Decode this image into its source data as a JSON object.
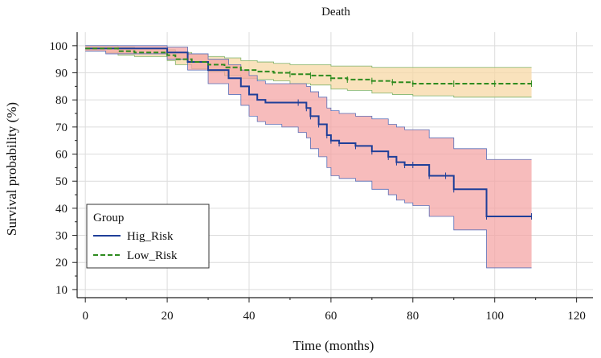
{
  "chart_data": {
    "type": "line",
    "subtype": "kaplan-meier survival curve with confidence bands",
    "title": "Death",
    "xlabel": "Time (months)",
    "ylabel": "Survival probability (%)",
    "xlim": [
      -2,
      124
    ],
    "ylim": [
      7,
      105
    ],
    "xticks": [
      0,
      20,
      40,
      60,
      80,
      100,
      120
    ],
    "yticks": [
      10,
      20,
      30,
      40,
      50,
      60,
      70,
      80,
      90,
      100
    ],
    "grid": true,
    "legend": {
      "title": "Group",
      "placement": "lower-left"
    },
    "colors": {
      "high_line": "#1f3f99",
      "high_band": "#f4a6a6",
      "low_line": "#2e8b1f",
      "low_band": "#f7d8a6"
    },
    "series": [
      {
        "name": "Hig_Risk",
        "style": "solid",
        "x": [
          0,
          5,
          20,
          25,
          30,
          35,
          38,
          40,
          42,
          44,
          46,
          48,
          52,
          54,
          55,
          57,
          59,
          60,
          62,
          66,
          70,
          74,
          76,
          78,
          80,
          84,
          88,
          90,
          98,
          109
        ],
        "y": [
          99,
          99,
          97.5,
          94,
          91,
          88,
          85,
          82,
          80,
          79,
          79,
          79,
          79,
          77,
          74,
          71,
          67,
          65,
          64,
          63,
          61,
          59,
          57,
          56,
          56,
          52,
          52,
          47,
          37,
          37
        ],
        "ci_lower": [
          98,
          97,
          95,
          91,
          86,
          82,
          78,
          74,
          72,
          71,
          71,
          70,
          68,
          66,
          62,
          59,
          55,
          52,
          51,
          50,
          47,
          45,
          43,
          42,
          41,
          37,
          37,
          32,
          18,
          18
        ],
        "ci_upper": [
          100,
          100,
          99.5,
          97,
          95,
          93,
          91,
          89,
          87,
          86,
          86,
          86,
          86,
          85,
          83,
          81,
          77,
          76,
          75,
          74,
          73,
          71,
          70,
          69,
          69,
          66,
          66,
          62,
          58,
          58
        ]
      },
      {
        "name": "Low_Risk",
        "style": "dashed",
        "x": [
          0,
          5,
          8,
          12,
          20,
          22,
          26,
          30,
          34,
          38,
          42,
          46,
          50,
          55,
          60,
          64,
          70,
          75,
          80,
          90,
          100,
          109
        ],
        "y": [
          99,
          99,
          98,
          97.5,
          96.5,
          95,
          94,
          93,
          92,
          91,
          90.5,
          90,
          89.5,
          89,
          88,
          87.5,
          87,
          86.5,
          86,
          86,
          86,
          86
        ],
        "ci_lower": [
          98,
          97.5,
          96.5,
          96,
          94.5,
          93,
          91.5,
          90.5,
          89,
          88,
          87.5,
          87,
          86,
          85.5,
          84,
          83.5,
          82.5,
          82,
          81.5,
          81,
          81,
          81
        ],
        "ci_upper": [
          100,
          100,
          99.5,
          99,
          98.5,
          97.5,
          97,
          96,
          95.5,
          94.5,
          94,
          93.5,
          93,
          93,
          92.5,
          92.5,
          92,
          92,
          92,
          92,
          92,
          92
        ]
      }
    ]
  }
}
